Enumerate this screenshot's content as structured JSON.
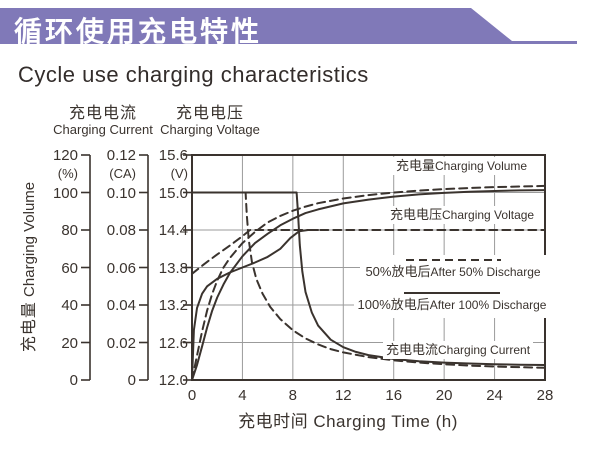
{
  "banner": {
    "title_zh": "循环使用充电特性",
    "color": "#8079b8"
  },
  "page_title": "Cycle use charging characteristics",
  "axes": {
    "volume": {
      "label_zh": "充电量",
      "label_en": "Charging Volume",
      "unit": "(%)",
      "ticks": [
        "120",
        "100",
        "80",
        "60",
        "40",
        "20",
        "0"
      ]
    },
    "current": {
      "label_zh": "充电电流",
      "label_en": "Charging Current",
      "unit": "(CA)",
      "ticks": [
        "0.12",
        "0.10",
        "0.08",
        "0.06",
        "0.04",
        "0.02",
        "0"
      ]
    },
    "voltage": {
      "label_zh": "充电电压",
      "label_en": "Charging Voltage",
      "unit": "(V)",
      "ticks": [
        "15.6",
        "15.0",
        "14.4",
        "13.8",
        "13.2",
        "12.6",
        "12.0"
      ]
    },
    "x": {
      "label_zh": "充电时间",
      "label_en": "Charging Time (h)",
      "ticks": [
        "0",
        "4",
        "8",
        "12",
        "16",
        "20",
        "24",
        "28"
      ]
    }
  },
  "chart_data": {
    "type": "line",
    "title_zh": "循环使用充电特性",
    "title_en": "Cycle use charging characteristics",
    "x_range": [
      0,
      28
    ],
    "x_gridline_step": 4,
    "y_scales": {
      "volume_percent": {
        "min": 0,
        "max": 120,
        "step": 20
      },
      "current_CA": {
        "min": 0,
        "max": 0.12,
        "step": 0.02
      },
      "voltage_V": {
        "min": 12.0,
        "max": 15.6,
        "step": 0.6
      }
    },
    "grid": true,
    "line_color": "#3a332e",
    "grid_color": "#9b9b9b",
    "labels": {
      "volume": {
        "zh": "充电量",
        "en": "Charging Volume"
      },
      "voltage": {
        "zh": "充电电压",
        "en": "Charging Voltage"
      },
      "current": {
        "zh": "充电电流",
        "en": "Charging Current"
      }
    },
    "legend": [
      {
        "style": "dashed",
        "zh": "50%放电后",
        "en": "After 50% Discharge"
      },
      {
        "style": "solid",
        "zh": "100%放电后",
        "en": "After 100% Discharge"
      }
    ],
    "series": [
      {
        "id": "volume-after-50-discharge",
        "quantity": "charging_volume",
        "scale": "percent",
        "style": "dashed",
        "points": [
          [
            0,
            0
          ],
          [
            0.4,
            13
          ],
          [
            0.8,
            26
          ],
          [
            1.2,
            37
          ],
          [
            1.6,
            46
          ],
          [
            2,
            53
          ],
          [
            2.5,
            60
          ],
          [
            3,
            65
          ],
          [
            4,
            73
          ],
          [
            5,
            79
          ],
          [
            6,
            84
          ],
          [
            7,
            87.5
          ],
          [
            8,
            90.3
          ],
          [
            9,
            92.5
          ],
          [
            10,
            94.3
          ],
          [
            12,
            96.8
          ],
          [
            14,
            98.6
          ],
          [
            16,
            100
          ],
          [
            18,
            101
          ],
          [
            20,
            101.8
          ],
          [
            22,
            102.4
          ],
          [
            24,
            102.9
          ],
          [
            26,
            103.2
          ],
          [
            28,
            103.5
          ]
        ]
      },
      {
        "id": "volume-after-100-discharge",
        "quantity": "charging_volume",
        "scale": "percent",
        "style": "solid",
        "points": [
          [
            0,
            0
          ],
          [
            0.4,
            8
          ],
          [
            0.8,
            18
          ],
          [
            1.2,
            28
          ],
          [
            1.6,
            37
          ],
          [
            2,
            44
          ],
          [
            2.5,
            51
          ],
          [
            3,
            57
          ],
          [
            4,
            66
          ],
          [
            5,
            73
          ],
          [
            6,
            78
          ],
          [
            7,
            82.5
          ],
          [
            8,
            86
          ],
          [
            9,
            89
          ],
          [
            10,
            91
          ],
          [
            12,
            94.2
          ],
          [
            14,
            96.2
          ],
          [
            16,
            97.8
          ],
          [
            18,
            99
          ],
          [
            20,
            99.8
          ],
          [
            22,
            100.4
          ],
          [
            24,
            100.8
          ],
          [
            26,
            101.1
          ],
          [
            28,
            101.3
          ]
        ]
      },
      {
        "id": "voltage-after-50-discharge",
        "quantity": "charging_voltage",
        "scale": "voltage",
        "style": "dashed",
        "points": [
          [
            0,
            13.7
          ],
          [
            1,
            13.86
          ],
          [
            2,
            14.01
          ],
          [
            3,
            14.15
          ],
          [
            4,
            14.3
          ],
          [
            4.6,
            14.4
          ],
          [
            28,
            14.4
          ]
        ]
      },
      {
        "id": "voltage-after-100-discharge",
        "quantity": "charging_voltage",
        "scale": "voltage",
        "style": "solid",
        "points": [
          [
            0,
            12.0
          ],
          [
            0.15,
            12.8
          ],
          [
            0.4,
            13.15
          ],
          [
            0.8,
            13.38
          ],
          [
            1.2,
            13.5
          ],
          [
            2,
            13.62
          ],
          [
            3,
            13.72
          ],
          [
            4,
            13.8
          ],
          [
            5,
            13.88
          ],
          [
            6,
            13.97
          ],
          [
            7,
            14.1
          ],
          [
            7.8,
            14.27
          ],
          [
            8.5,
            14.38
          ],
          [
            9.2,
            14.4
          ],
          [
            10,
            14.4
          ]
        ]
      },
      {
        "id": "current-after-50-discharge",
        "quantity": "charging_current",
        "scale": "current",
        "style": "dashed",
        "points": [
          [
            0,
            0.1
          ],
          [
            4.25,
            0.1
          ],
          [
            4.35,
            0.088
          ],
          [
            4.5,
            0.075
          ],
          [
            4.75,
            0.063
          ],
          [
            5.1,
            0.054
          ],
          [
            5.6,
            0.046
          ],
          [
            6.2,
            0.039
          ],
          [
            7,
            0.0325
          ],
          [
            8,
            0.0265
          ],
          [
            9,
            0.0222
          ],
          [
            10,
            0.019
          ],
          [
            11,
            0.0165
          ],
          [
            12,
            0.0147
          ],
          [
            14,
            0.0122
          ],
          [
            16,
            0.0105
          ],
          [
            18,
            0.0093
          ],
          [
            20,
            0.0084
          ],
          [
            22,
            0.0077
          ],
          [
            24,
            0.0072
          ],
          [
            26,
            0.0068
          ],
          [
            28,
            0.0065
          ]
        ]
      },
      {
        "id": "current-after-100-discharge",
        "quantity": "charging_current",
        "scale": "current",
        "style": "solid",
        "points": [
          [
            0,
            0.1
          ],
          [
            8.3,
            0.1
          ],
          [
            8.4,
            0.09
          ],
          [
            8.55,
            0.072
          ],
          [
            8.75,
            0.058
          ],
          [
            9,
            0.047
          ],
          [
            9.5,
            0.036
          ],
          [
            10,
            0.029
          ],
          [
            11,
            0.0215
          ],
          [
            12,
            0.0175
          ],
          [
            13,
            0.015
          ],
          [
            14,
            0.0133
          ],
          [
            16,
            0.0112
          ],
          [
            18,
            0.01
          ],
          [
            20,
            0.0093
          ],
          [
            22,
            0.0088
          ],
          [
            24,
            0.0084
          ],
          [
            26,
            0.0081
          ],
          [
            28,
            0.008
          ]
        ]
      }
    ]
  }
}
